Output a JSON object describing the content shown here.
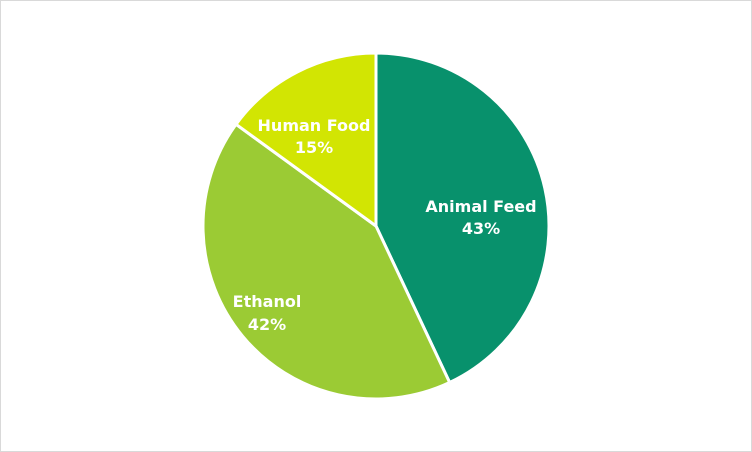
{
  "chart_data": {
    "type": "pie",
    "title": "",
    "start_angle_deg": 0,
    "direction": "clockwise",
    "slices": [
      {
        "label": "Animal Feed",
        "value": 43,
        "display": "43%",
        "color": "#08916C"
      },
      {
        "label": "Ethanol",
        "value": 42,
        "display": "42%",
        "color": "#9BCB34"
      },
      {
        "label": "Human Food",
        "value": 15,
        "display": "15%",
        "color": "#D2E503"
      }
    ],
    "legend": "none",
    "data_labels": "inside"
  },
  "labels": {
    "animal_feed": {
      "name": "Animal Feed",
      "pct": "43%"
    },
    "ethanol": {
      "name": "Ethanol",
      "pct": "42%"
    },
    "human_food": {
      "name": "Human Food",
      "pct": "15%"
    }
  }
}
